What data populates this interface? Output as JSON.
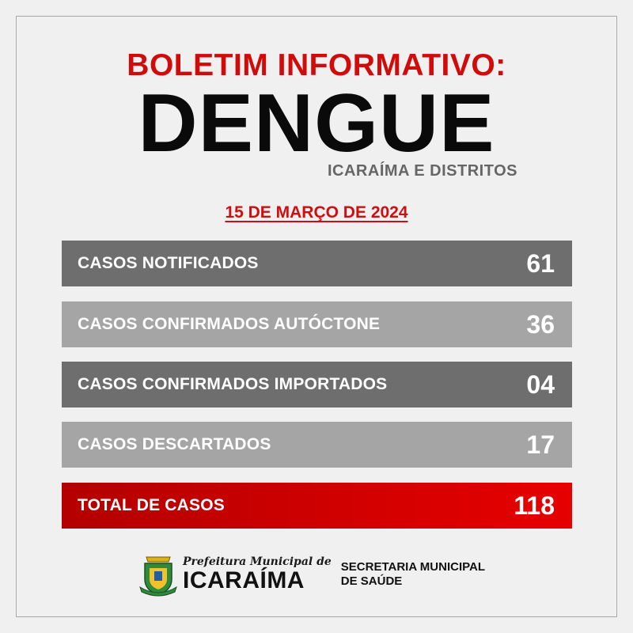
{
  "header": {
    "kicker": "BOLETIM INFORMATIVO:",
    "title": "DENGUE",
    "subtitle": "ICARAÍMA E DISTRITOS"
  },
  "date": "15 DE MARÇO DE 2024",
  "rows": [
    {
      "label": "CASOS NOTIFICADOS",
      "value": "61"
    },
    {
      "label": "CASOS CONFIRMADOS AUTÓCTONE",
      "value": "36"
    },
    {
      "label": "CASOS CONFIRMADOS IMPORTADOS",
      "value": "04"
    },
    {
      "label": "CASOS DESCARTADOS",
      "value": "17"
    },
    {
      "label": "TOTAL DE CASOS",
      "value": "118"
    }
  ],
  "colors": {
    "accent_red": "#d10a0a",
    "row_dark": "#6e6e6e",
    "row_light": "#a5a5a5"
  },
  "footer": {
    "crest_icon": "municipal-crest-icon",
    "prefeitura": "Prefeitura Municipal de",
    "city": "ICARAÍMA",
    "secretaria_line1": "SECRETARIA MUNICIPAL",
    "secretaria_line2": "DE SAÚDE"
  }
}
